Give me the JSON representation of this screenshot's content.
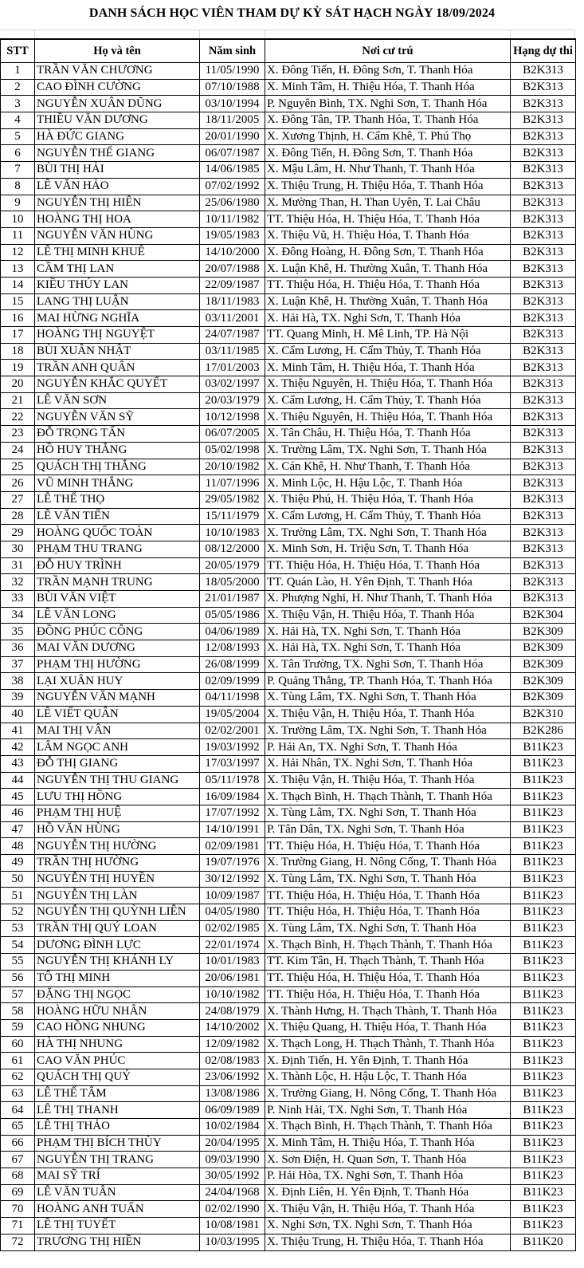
{
  "title": "DANH SÁCH HỌC VIÊN THAM DỰ KỲ SÁT HẠCH NGÀY 18/09/2024",
  "columns": [
    "STT",
    "Họ và tên",
    "Năm sinh",
    "Nơi cư trú",
    "Hạng dự thi"
  ],
  "rows": [
    [
      "1",
      "TRẦN VĂN CHƯƠNG",
      "11/05/1990",
      "X. Đông Tiến, H. Đông Sơn, T. Thanh Hóa",
      "B2K313"
    ],
    [
      "2",
      "CAO ĐÌNH CƯỜNG",
      "07/10/1988",
      "X. Minh Tâm, H. Thiệu Hóa, T. Thanh Hóa",
      "B2K313"
    ],
    [
      "3",
      "NGUYỄN XUÂN DŨNG",
      "03/10/1994",
      "P. Nguyên Bình, TX. Nghi Sơn, T. Thanh Hóa",
      "B2K313"
    ],
    [
      "4",
      "THIỀU VĂN DƯƠNG",
      "18/11/2005",
      "X. Đông Tân, TP. Thanh Hóa, T. Thanh Hóa",
      "B2K313"
    ],
    [
      "5",
      "HÀ ĐỨC GIANG",
      "20/01/1990",
      "X. Xương Thịnh, H. Cẩm Khê, T. Phú Thọ",
      "B2K313"
    ],
    [
      "6",
      "NGUYỄN THẾ GIANG",
      "06/07/1987",
      "X. Đông Tiến, H. Đông Sơn, T. Thanh Hóa",
      "B2K313"
    ],
    [
      "7",
      "BÙI THỊ HẢI",
      "14/06/1985",
      "X. Mậu Lâm, H. Như Thanh, T. Thanh Hóa",
      "B2K313"
    ],
    [
      "8",
      "LÊ VĂN HẢO",
      "07/02/1992",
      "X. Thiệu Trung, H. Thiệu Hóa, T. Thanh Hóa",
      "B2K313"
    ],
    [
      "9",
      "NGUYỄN THỊ HIÊN",
      "25/06/1980",
      "X. Mường Than, H. Than Uyên, T. Lai Châu",
      "B2K313"
    ],
    [
      "10",
      "HOÀNG THỊ HOA",
      "10/11/1982",
      "TT. Thiệu Hóa, H. Thiệu Hóa, T. Thanh Hóa",
      "B2K313"
    ],
    [
      "11",
      "NGUYỄN VĂN HÙNG",
      "19/05/1983",
      "X. Thiệu Vũ, H. Thiệu Hóa, T. Thanh Hóa",
      "B2K313"
    ],
    [
      "12",
      "LÊ THỊ MINH KHUÊ",
      "14/10/2000",
      "X. Đông Hoàng, H. Đông Sơn, T. Thanh Hóa",
      "B2K313"
    ],
    [
      "13",
      "CẦM THỊ LAN",
      "20/07/1988",
      "X. Luận Khê, H. Thường Xuân, T. Thanh Hóa",
      "B2K313"
    ],
    [
      "14",
      "KIỀU THÚY LAN",
      "22/09/1987",
      "TT. Thiệu Hóa, H. Thiệu Hóa, T. Thanh Hóa",
      "B2K313"
    ],
    [
      "15",
      "LANG THỊ LUẬN",
      "18/11/1983",
      "X. Luận Khê, H. Thường Xuân, T. Thanh Hóa",
      "B2K313"
    ],
    [
      "16",
      "MAI HỪNG NGHĨA",
      "03/11/2001",
      "X. Hải Hà, TX. Nghi Sơn, T. Thanh Hóa",
      "B2K313"
    ],
    [
      "17",
      "HOÀNG THỊ NGUYỆT",
      "24/07/1987",
      "TT. Quang Minh, H. Mê Linh, TP. Hà Nội",
      "B2K313"
    ],
    [
      "18",
      "BÙI XUÂN NHẬT",
      "03/11/1985",
      "X. Cẩm Lương, H. Cẩm Thủy, T. Thanh Hóa",
      "B2K313"
    ],
    [
      "19",
      "TRẦN ANH QUÂN",
      "17/01/2003",
      "X. Minh Tâm, H. Thiệu Hóa, T. Thanh Hóa",
      "B2K313"
    ],
    [
      "20",
      "NGUYỄN KHẮC QUYẾT",
      "03/02/1997",
      "X. Thiệu Nguyên, H. Thiệu Hóa, T. Thanh Hóa",
      "B2K313"
    ],
    [
      "21",
      "LÊ VĂN SƠN",
      "20/03/1979",
      "X. Cẩm Lương, H. Cẩm Thủy, T. Thanh Hóa",
      "B2K313"
    ],
    [
      "22",
      "NGUYỄN VĂN SỸ",
      "10/12/1998",
      "X. Thiệu Nguyên, H. Thiệu Hóa, T. Thanh Hóa",
      "B2K313"
    ],
    [
      "23",
      "ĐỖ TRỌNG TẤN",
      "06/07/2005",
      "X. Tân Châu, H. Thiệu Hóa, T. Thanh Hóa",
      "B2K313"
    ],
    [
      "24",
      "HỒ HUY THẮNG",
      "05/02/1998",
      "X. Trường Lâm, TX. Nghi Sơn, T. Thanh Hóa",
      "B2K313"
    ],
    [
      "25",
      "QUÁCH THỊ THẮNG",
      "20/10/1982",
      "X. Cán Khê, H. Như Thanh, T. Thanh Hóa",
      "B2K313"
    ],
    [
      "26",
      "VŨ MINH THẮNG",
      "11/07/1996",
      "X. Minh Lộc, H. Hậu Lộc, T. Thanh Hóa",
      "B2K313"
    ],
    [
      "27",
      "LÊ THẾ THỌ",
      "29/05/1982",
      "X. Thiệu Phú, H. Thiệu Hóa, T. Thanh Hóa",
      "B2K313"
    ],
    [
      "28",
      "LÊ VĂN TIẾN",
      "15/11/1979",
      "X. Cẩm Lương, H. Cẩm Thủy, T. Thanh Hóa",
      "B2K313"
    ],
    [
      "29",
      "HOÀNG QUỐC TOÀN",
      "10/10/1983",
      "X. Trường Lâm, TX. Nghi Sơn, T. Thanh Hóa",
      "B2K313"
    ],
    [
      "30",
      "PHẠM THU TRANG",
      "08/12/2000",
      "X. Minh Sơn, H. Triệu Sơn, T. Thanh Hóa",
      "B2K313"
    ],
    [
      "31",
      "ĐỖ HUY TRÌNH",
      "20/05/1979",
      "TT. Thiệu Hóa, H. Thiệu Hóa, T. Thanh Hóa",
      "B2K313"
    ],
    [
      "32",
      "TRẦN MẠNH TRUNG",
      "18/05/2000",
      "TT. Quán Lào, H. Yên Định, T. Thanh Hóa",
      "B2K313"
    ],
    [
      "33",
      "BÙI VĂN VIỆT",
      "21/01/1987",
      "X. Phượng Nghi, H. Như Thanh, T. Thanh Hóa",
      "B2K313"
    ],
    [
      "34",
      "LÊ VĂN LONG",
      "05/05/1986",
      "X. Thiệu Vận, H. Thiệu Hóa, T. Thanh Hóa",
      "B2K304"
    ],
    [
      "35",
      "ĐỒNG PHÚC CÔNG",
      "04/06/1989",
      "X. Hải Hà, TX. Nghi Sơn, T. Thanh Hóa",
      "B2K309"
    ],
    [
      "36",
      "MAI VĂN DƯƠNG",
      "12/08/1993",
      "X. Hải Hà, TX. Nghi Sơn, T. Thanh Hóa",
      "B2K309"
    ],
    [
      "37",
      "PHẠM THỊ HƯỜNG",
      "26/08/1999",
      "X. Tân Trường, TX. Nghi Sơn, T. Thanh Hóa",
      "B2K309"
    ],
    [
      "38",
      "LẠI XUÂN HUY",
      "02/09/1999",
      "P. Quảng Thắng, TP. Thanh Hóa, T. Thanh Hóa",
      "B2K309"
    ],
    [
      "39",
      "NGUYỄN VĂN MẠNH",
      "04/11/1998",
      "X. Tùng Lâm, TX. Nghi Sơn, T. Thanh Hóa",
      "B2K309"
    ],
    [
      "40",
      "LÊ VIẾT QUÂN",
      "19/05/2004",
      "X. Thiệu Vận, H. Thiệu Hóa, T. Thanh Hóa",
      "B2K310"
    ],
    [
      "41",
      "MAI THỊ VÂN",
      "02/02/2001",
      "X. Trường Lâm, TX. Nghi Sơn, T. Thanh Hóa",
      "B2K286"
    ],
    [
      "42",
      "LÂM NGỌC ANH",
      "19/03/1992",
      "P. Hải An, TX. Nghi Sơn, T. Thanh Hóa",
      "B11K23"
    ],
    [
      "43",
      "ĐỖ THỊ GIANG",
      "17/03/1997",
      "X. Hải Nhân, TX. Nghi Sơn, T. Thanh Hóa",
      "B11K23"
    ],
    [
      "44",
      "NGUYỄN THỊ THU GIANG",
      "05/11/1978",
      "X. Thiệu Vận, H. Thiệu Hóa, T. Thanh Hóa",
      "B11K23"
    ],
    [
      "45",
      "LƯU THỊ HỒNG",
      "16/09/1984",
      "X. Thạch Bình, H. Thạch Thành, T. Thanh Hóa",
      "B11K23"
    ],
    [
      "46",
      "PHẠM THỊ HUỆ",
      "17/07/1992",
      "X. Tùng Lâm, TX. Nghi Sơn, T. Thanh Hóa",
      "B11K23"
    ],
    [
      "47",
      "HỒ VĂN HÙNG",
      "14/10/1991",
      "P. Tân Dân, TX. Nghi Sơn, T. Thanh Hóa",
      "B11K23"
    ],
    [
      "48",
      "NGUYỄN THỊ HƯỜNG",
      "02/09/1981",
      "TT. Thiệu Hóa, H. Thiệu Hóa, T. Thanh Hóa",
      "B11K23"
    ],
    [
      "49",
      "TRẦN THỊ HƯỜNG",
      "19/07/1976",
      "X. Trường Giang, H. Nông Cống, T. Thanh Hóa",
      "B11K23"
    ],
    [
      "50",
      "NGUYỄN THỊ HUYỀN",
      "30/12/1992",
      "X. Tùng Lâm, TX. Nghi Sơn, T. Thanh Hóa",
      "B11K23"
    ],
    [
      "51",
      "NGUYỄN THỊ LÀN",
      "10/09/1987",
      "TT. Thiệu Hóa, H. Thiệu Hóa, T. Thanh Hóa",
      "B11K23"
    ],
    [
      "52",
      "NGUYỄN THỊ QUỲNH LIÊN",
      "04/05/1980",
      "TT. Thiệu Hóa, H. Thiệu Hóa, T. Thanh Hóa",
      "B11K23"
    ],
    [
      "53",
      "TRẦN THỊ QUÝ LOAN",
      "02/02/1985",
      "X. Tùng Lâm, TX. Nghi Sơn, T. Thanh Hóa",
      "B11K23"
    ],
    [
      "54",
      "DƯƠNG ĐÌNH LỰC",
      "22/01/1974",
      "X. Thạch Bình, H. Thạch Thành, T. Thanh Hóa",
      "B11K23"
    ],
    [
      "55",
      "NGUYỄN THỊ KHÁNH LY",
      "10/01/1983",
      "TT. Kim Tân, H. Thạch Thành, T. Thanh Hóa",
      "B11K23"
    ],
    [
      "56",
      "TÔ THỊ MINH",
      "20/06/1981",
      "TT. Thiệu Hóa, H. Thiệu Hóa, T. Thanh Hóa",
      "B11K23"
    ],
    [
      "57",
      "ĐẶNG THỊ NGỌC",
      "10/10/1982",
      "TT. Thiệu Hóa, H. Thiệu Hóa, T. Thanh Hóa",
      "B11K23"
    ],
    [
      "58",
      "HOÀNG HỮU NHÂN",
      "24/08/1979",
      "X. Thành Hưng, H. Thạch Thành, T. Thanh Hóa",
      "B11K23"
    ],
    [
      "59",
      "CAO HỒNG NHUNG",
      "14/10/2002",
      "X. Thiệu Quang, H. Thiệu Hóa, T. Thanh Hóa",
      "B11K23"
    ],
    [
      "60",
      "HÀ THỊ NHUNG",
      "12/09/1982",
      "X. Thạch Long, H. Thạch Thành, T. Thanh Hóa",
      "B11K23"
    ],
    [
      "61",
      "CAO VĂN PHÚC",
      "02/08/1983",
      "X. Định Tiến, H. Yên Định, T. Thanh Hóa",
      "B11K23"
    ],
    [
      "62",
      "QUÁCH THỊ QUÝ",
      "23/06/1992",
      "X. Thành Lộc, H. Hậu Lộc, T. Thanh Hóa",
      "B11K23"
    ],
    [
      "63",
      "LÊ THẾ TÂM",
      "13/08/1986",
      "X. Trường Giang, H. Nông Cống, T. Thanh Hóa",
      "B11K23"
    ],
    [
      "64",
      "LÊ THỊ THANH",
      "06/09/1989",
      "P. Ninh Hải, TX. Nghi Sơn, T. Thanh Hóa",
      "B11K23"
    ],
    [
      "65",
      "LÊ THỊ THẢO",
      "10/02/1984",
      "X. Thạch Bình, H. Thạch Thành, T. Thanh Hóa",
      "B11K23"
    ],
    [
      "66",
      "PHẠM THỊ BÍCH THÙY",
      "20/04/1995",
      "X. Minh Tâm, H. Thiệu Hóa, T. Thanh Hóa",
      "B11K23"
    ],
    [
      "67",
      "NGUYỄN THỊ TRANG",
      "09/03/1990",
      "X. Sơn Điện, H. Quan Sơn, T. Thanh Hóa",
      "B11K23"
    ],
    [
      "68",
      "MAI SỸ TRÍ",
      "30/05/1992",
      "P. Hải Hòa, TX. Nghi Sơn, T. Thanh Hóa",
      "B11K23"
    ],
    [
      "69",
      "LÊ VĂN TUÂN",
      "24/04/1968",
      "X. Định Liên, H. Yên Định, T. Thanh Hóa",
      "B11K23"
    ],
    [
      "70",
      "HOÀNG ANH TUẤN",
      "02/02/1990",
      "X. Thiệu Vận, H. Thiệu Hóa, T. Thanh Hóa",
      "B11K23"
    ],
    [
      "71",
      "LÊ THỊ TUYẾT",
      "10/08/1981",
      "X. Nghi Sơn, TX. Nghi Sơn, T. Thanh Hóa",
      "B11K23"
    ],
    [
      "72",
      "TRƯƠNG THỊ HIỀN",
      "10/03/1995",
      "X. Thiệu Trung, H. Thiệu Hóa, T. Thanh Hóa",
      "B11K20"
    ]
  ]
}
